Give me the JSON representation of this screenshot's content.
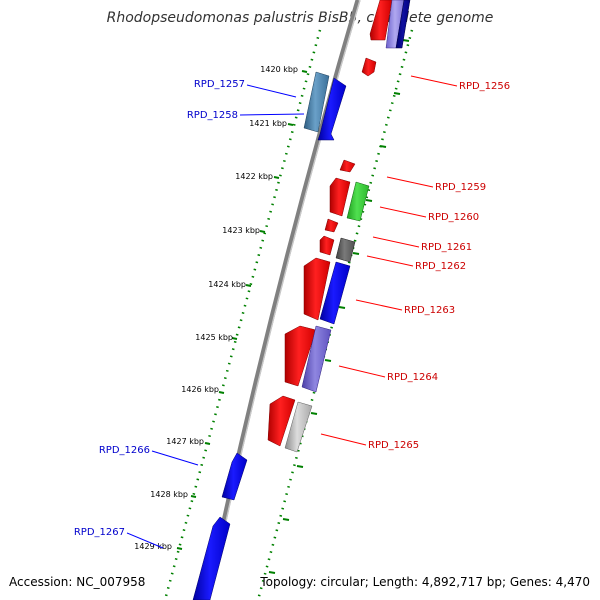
{
  "title": "Rhodopseudomonas palustris BisB5, complete genome",
  "accession": "Accession: NC_007958",
  "topology": "Topology: circular; Length: 4,892,717 bp; Genes: 4,470",
  "colors": {
    "backbone": "#808080",
    "tick": "#008000",
    "forward_gene": "#ff0000",
    "reverse_gene": "#0000ff",
    "label_red": "#cc0000",
    "label_blue": "#0000cc"
  },
  "kbp_ticks": [
    "1420 kbp",
    "1421 kbp",
    "1422 kbp",
    "1423 kbp",
    "1424 kbp",
    "1425 kbp",
    "1426 kbp",
    "1427 kbp",
    "1428 kbp",
    "1429 kbp"
  ],
  "genes_right": [
    "RPD_1256",
    "RPD_1259",
    "RPD_1260",
    "RPD_1261",
    "RPD_1262",
    "RPD_1263",
    "RPD_1264",
    "RPD_1265"
  ],
  "genes_left": [
    "RPD_1257",
    "RPD_1258",
    "RPD_1266",
    "RPD_1267"
  ]
}
